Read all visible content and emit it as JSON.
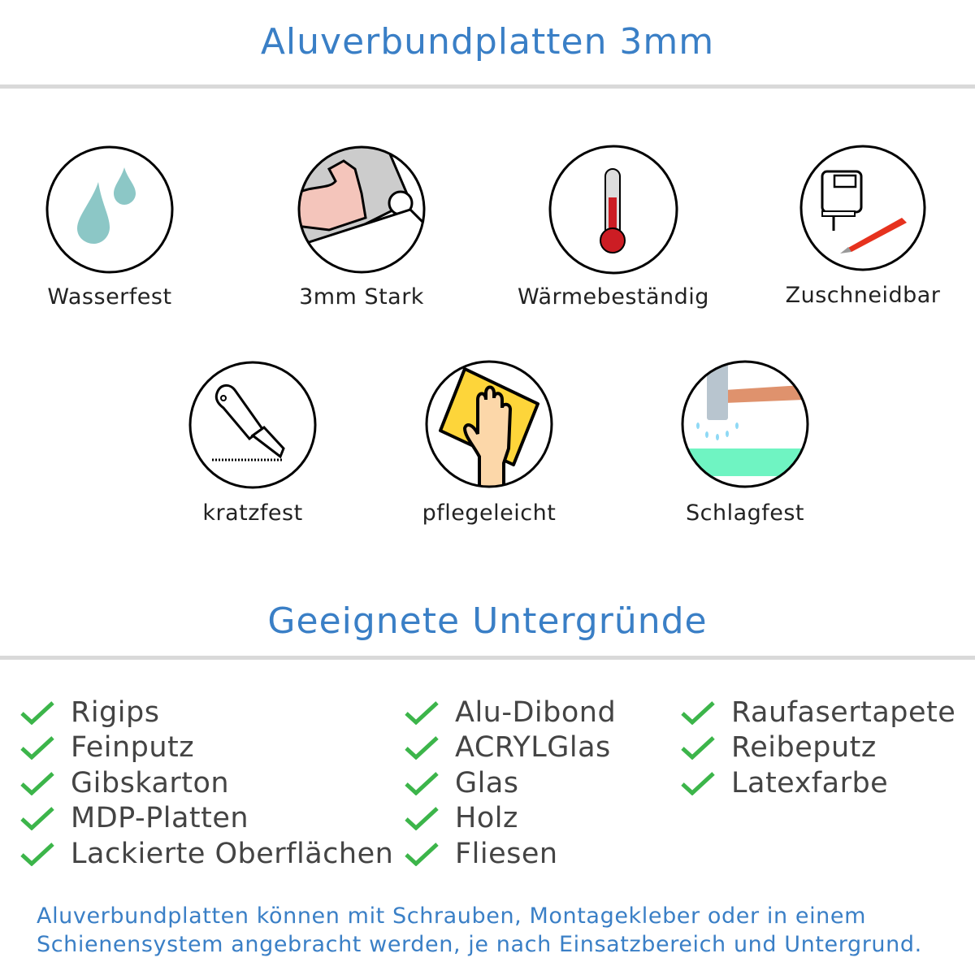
{
  "header": {
    "title": "Aluverbundplatten 3mm"
  },
  "features": [
    {
      "label": "Wasserfest",
      "icon": "water-drops-icon"
    },
    {
      "label": "3mm Stark",
      "icon": "strong-arm-icon"
    },
    {
      "label": "Wärmebeständig",
      "icon": "thermometer-icon"
    },
    {
      "label": "Zuschneidbar",
      "icon": "jigsaw-cutter-icon"
    },
    {
      "label": "kratzfest",
      "icon": "cutter-knife-icon"
    },
    {
      "label": "pflegeleicht",
      "icon": "hand-cloth-icon"
    },
    {
      "label": "Schlagfest",
      "icon": "hammer-icon"
    }
  ],
  "surfaces": {
    "title": "Geeignete Untergründe",
    "columns": [
      [
        "Rigips",
        "Feinputz",
        "Gibskarton",
        "MDP-Platten",
        "Lackierte Oberflächen"
      ],
      [
        "Alu-Dibond",
        "ACRYLGlas",
        "Glas",
        "Holz",
        "Fliesen"
      ],
      [
        "Raufasertapete",
        "Reibeputz",
        "Latexfarbe"
      ]
    ]
  },
  "footer": {
    "lines": [
      "Aluverbundplatten können mit Schrauben, Montagekleber oder in einem",
      "Schienensystem angebracht werden, je nach Einsatzbereich und Untergrund."
    ]
  },
  "colors": {
    "accent": "#3a7fc6",
    "check": "#3cb54a"
  }
}
